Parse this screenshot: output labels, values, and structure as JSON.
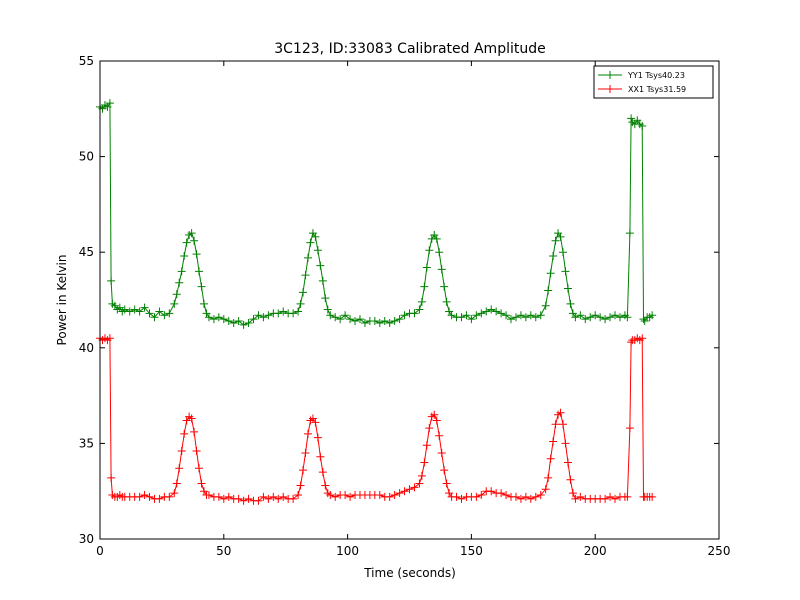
{
  "chart_data": {
    "type": "line",
    "title": "3C123, ID:33083 Calibrated Amplitude",
    "xlabel": "Time (seconds)",
    "ylabel": "Power in Kelvin",
    "xlim": [
      0,
      250
    ],
    "ylim": [
      30,
      55
    ],
    "xticks": [
      "0",
      "50",
      "100",
      "150",
      "200",
      "250"
    ],
    "yticks": [
      "30",
      "35",
      "40",
      "45",
      "50",
      "55"
    ],
    "grid": false,
    "legend_position": "top-right",
    "marker": "plus",
    "series": [
      {
        "name": "YY1 Tsys40.23",
        "color": "#008000",
        "points": [
          [
            0,
            52.6
          ],
          [
            1,
            52.5
          ],
          [
            2,
            52.7
          ],
          [
            3,
            52.6
          ],
          [
            4,
            52.8
          ],
          [
            4.5,
            43.5
          ],
          [
            5,
            42.3
          ],
          [
            6,
            42.2
          ],
          [
            7,
            42.0
          ],
          [
            8,
            42.1
          ],
          [
            9,
            41.9
          ],
          [
            10,
            42.0
          ],
          [
            12,
            41.9
          ],
          [
            14,
            42.0
          ],
          [
            16,
            41.9
          ],
          [
            18,
            42.1
          ],
          [
            20,
            41.8
          ],
          [
            22,
            41.6
          ],
          [
            24,
            41.9
          ],
          [
            26,
            41.7
          ],
          [
            28,
            41.8
          ],
          [
            30,
            42.3
          ],
          [
            31,
            42.8
          ],
          [
            32,
            43.4
          ],
          [
            33,
            44.0
          ],
          [
            34,
            44.8
          ],
          [
            35,
            45.5
          ],
          [
            36,
            45.9
          ],
          [
            37,
            46.0
          ],
          [
            38,
            45.6
          ],
          [
            39,
            44.9
          ],
          [
            40,
            44.0
          ],
          [
            41,
            43.2
          ],
          [
            42,
            42.3
          ],
          [
            43,
            41.8
          ],
          [
            44,
            41.6
          ],
          [
            46,
            41.5
          ],
          [
            48,
            41.6
          ],
          [
            50,
            41.5
          ],
          [
            52,
            41.4
          ],
          [
            54,
            41.3
          ],
          [
            56,
            41.4
          ],
          [
            58,
            41.2
          ],
          [
            60,
            41.3
          ],
          [
            62,
            41.5
          ],
          [
            64,
            41.7
          ],
          [
            66,
            41.6
          ],
          [
            68,
            41.7
          ],
          [
            70,
            41.8
          ],
          [
            72,
            41.8
          ],
          [
            74,
            41.9
          ],
          [
            76,
            41.8
          ],
          [
            78,
            41.8
          ],
          [
            80,
            41.9
          ],
          [
            81,
            42.3
          ],
          [
            82,
            42.9
          ],
          [
            83,
            43.8
          ],
          [
            84,
            44.7
          ],
          [
            85,
            45.5
          ],
          [
            86,
            46.0
          ],
          [
            87,
            45.8
          ],
          [
            88,
            45.1
          ],
          [
            89,
            44.3
          ],
          [
            90,
            43.5
          ],
          [
            91,
            42.6
          ],
          [
            92,
            42.0
          ],
          [
            93,
            41.7
          ],
          [
            95,
            41.6
          ],
          [
            97,
            41.5
          ],
          [
            99,
            41.7
          ],
          [
            101,
            41.5
          ],
          [
            103,
            41.4
          ],
          [
            105,
            41.5
          ],
          [
            107,
            41.3
          ],
          [
            109,
            41.4
          ],
          [
            111,
            41.4
          ],
          [
            113,
            41.3
          ],
          [
            115,
            41.4
          ],
          [
            117,
            41.3
          ],
          [
            119,
            41.4
          ],
          [
            121,
            41.5
          ],
          [
            123,
            41.7
          ],
          [
            125,
            41.8
          ],
          [
            127,
            41.8
          ],
          [
            129,
            42.0
          ],
          [
            130,
            42.4
          ],
          [
            131,
            43.2
          ],
          [
            132,
            44.2
          ],
          [
            133,
            45.1
          ],
          [
            134,
            45.7
          ],
          [
            135,
            45.9
          ],
          [
            136,
            45.7
          ],
          [
            137,
            45.0
          ],
          [
            138,
            44.1
          ],
          [
            139,
            43.2
          ],
          [
            140,
            42.4
          ],
          [
            141,
            41.9
          ],
          [
            142,
            41.7
          ],
          [
            144,
            41.6
          ],
          [
            146,
            41.6
          ],
          [
            148,
            41.7
          ],
          [
            150,
            41.5
          ],
          [
            152,
            41.7
          ],
          [
            154,
            41.8
          ],
          [
            156,
            41.9
          ],
          [
            158,
            42.0
          ],
          [
            160,
            41.9
          ],
          [
            162,
            41.8
          ],
          [
            164,
            41.7
          ],
          [
            166,
            41.5
          ],
          [
            168,
            41.6
          ],
          [
            170,
            41.7
          ],
          [
            172,
            41.6
          ],
          [
            174,
            41.7
          ],
          [
            176,
            41.6
          ],
          [
            178,
            41.7
          ],
          [
            180,
            42.2
          ],
          [
            181,
            43.0
          ],
          [
            182,
            43.9
          ],
          [
            183,
            44.8
          ],
          [
            184,
            45.6
          ],
          [
            185,
            46.0
          ],
          [
            186,
            45.8
          ],
          [
            187,
            45.0
          ],
          [
            188,
            44.0
          ],
          [
            189,
            43.1
          ],
          [
            190,
            42.3
          ],
          [
            191,
            41.8
          ],
          [
            192,
            41.6
          ],
          [
            194,
            41.7
          ],
          [
            196,
            41.5
          ],
          [
            198,
            41.6
          ],
          [
            200,
            41.7
          ],
          [
            202,
            41.6
          ],
          [
            204,
            41.5
          ],
          [
            206,
            41.6
          ],
          [
            208,
            41.7
          ],
          [
            210,
            41.6
          ],
          [
            212,
            41.7
          ],
          [
            213,
            41.6
          ],
          [
            214,
            46.0
          ],
          [
            214.5,
            52.0
          ],
          [
            215,
            51.8
          ],
          [
            216,
            51.7
          ],
          [
            217,
            51.9
          ],
          [
            218,
            51.7
          ],
          [
            219,
            51.6
          ],
          [
            219.5,
            41.5
          ],
          [
            220,
            41.4
          ],
          [
            221,
            41.6
          ],
          [
            222,
            41.6
          ],
          [
            223,
            41.7
          ]
        ]
      },
      {
        "name": "XX1 Tsys31.59",
        "color": "#ff0000",
        "points": [
          [
            0,
            40.5
          ],
          [
            1,
            40.4
          ],
          [
            2,
            40.5
          ],
          [
            3,
            40.4
          ],
          [
            4,
            40.5
          ],
          [
            4.5,
            33.2
          ],
          [
            5,
            32.3
          ],
          [
            6,
            32.2
          ],
          [
            7,
            32.2
          ],
          [
            8,
            32.3
          ],
          [
            9,
            32.2
          ],
          [
            10,
            32.2
          ],
          [
            12,
            32.2
          ],
          [
            14,
            32.2
          ],
          [
            16,
            32.2
          ],
          [
            18,
            32.3
          ],
          [
            20,
            32.2
          ],
          [
            22,
            32.1
          ],
          [
            24,
            32.1
          ],
          [
            26,
            32.2
          ],
          [
            28,
            32.2
          ],
          [
            30,
            32.4
          ],
          [
            31,
            32.9
          ],
          [
            32,
            33.7
          ],
          [
            33,
            34.6
          ],
          [
            34,
            35.5
          ],
          [
            35,
            36.2
          ],
          [
            36,
            36.4
          ],
          [
            37,
            36.3
          ],
          [
            38,
            35.6
          ],
          [
            39,
            34.6
          ],
          [
            40,
            33.7
          ],
          [
            41,
            32.9
          ],
          [
            42,
            32.5
          ],
          [
            43,
            32.3
          ],
          [
            44,
            32.3
          ],
          [
            46,
            32.2
          ],
          [
            48,
            32.2
          ],
          [
            50,
            32.1
          ],
          [
            52,
            32.2
          ],
          [
            54,
            32.1
          ],
          [
            56,
            32.1
          ],
          [
            58,
            32.0
          ],
          [
            60,
            32.1
          ],
          [
            62,
            32.0
          ],
          [
            64,
            32.0
          ],
          [
            66,
            32.2
          ],
          [
            68,
            32.1
          ],
          [
            70,
            32.2
          ],
          [
            72,
            32.1
          ],
          [
            74,
            32.2
          ],
          [
            76,
            32.1
          ],
          [
            78,
            32.1
          ],
          [
            80,
            32.3
          ],
          [
            81,
            32.8
          ],
          [
            82,
            33.6
          ],
          [
            83,
            34.5
          ],
          [
            84,
            35.5
          ],
          [
            85,
            36.2
          ],
          [
            86,
            36.3
          ],
          [
            87,
            36.1
          ],
          [
            88,
            35.3
          ],
          [
            89,
            34.3
          ],
          [
            90,
            33.5
          ],
          [
            91,
            32.8
          ],
          [
            92,
            32.4
          ],
          [
            93,
            32.3
          ],
          [
            95,
            32.2
          ],
          [
            97,
            32.3
          ],
          [
            99,
            32.3
          ],
          [
            101,
            32.2
          ],
          [
            103,
            32.3
          ],
          [
            105,
            32.3
          ],
          [
            107,
            32.3
          ],
          [
            109,
            32.3
          ],
          [
            111,
            32.3
          ],
          [
            113,
            32.3
          ],
          [
            115,
            32.2
          ],
          [
            117,
            32.2
          ],
          [
            119,
            32.3
          ],
          [
            121,
            32.4
          ],
          [
            123,
            32.5
          ],
          [
            125,
            32.6
          ],
          [
            127,
            32.7
          ],
          [
            129,
            32.9
          ],
          [
            130,
            33.3
          ],
          [
            131,
            34.0
          ],
          [
            132,
            34.9
          ],
          [
            133,
            35.8
          ],
          [
            134,
            36.4
          ],
          [
            135,
            36.5
          ],
          [
            136,
            36.2
          ],
          [
            137,
            35.4
          ],
          [
            138,
            34.5
          ],
          [
            139,
            33.6
          ],
          [
            140,
            32.9
          ],
          [
            141,
            32.4
          ],
          [
            142,
            32.2
          ],
          [
            144,
            32.2
          ],
          [
            146,
            32.1
          ],
          [
            148,
            32.2
          ],
          [
            150,
            32.2
          ],
          [
            152,
            32.2
          ],
          [
            154,
            32.3
          ],
          [
            156,
            32.5
          ],
          [
            158,
            32.5
          ],
          [
            160,
            32.4
          ],
          [
            162,
            32.4
          ],
          [
            164,
            32.3
          ],
          [
            166,
            32.2
          ],
          [
            168,
            32.2
          ],
          [
            170,
            32.1
          ],
          [
            172,
            32.2
          ],
          [
            174,
            32.1
          ],
          [
            176,
            32.2
          ],
          [
            178,
            32.3
          ],
          [
            180,
            32.6
          ],
          [
            181,
            33.2
          ],
          [
            182,
            34.2
          ],
          [
            183,
            35.1
          ],
          [
            184,
            36.0
          ],
          [
            185,
            36.5
          ],
          [
            186,
            36.6
          ],
          [
            187,
            36.0
          ],
          [
            188,
            35.0
          ],
          [
            189,
            34.0
          ],
          [
            190,
            33.1
          ],
          [
            191,
            32.4
          ],
          [
            192,
            32.1
          ],
          [
            194,
            32.2
          ],
          [
            196,
            32.1
          ],
          [
            198,
            32.1
          ],
          [
            200,
            32.1
          ],
          [
            202,
            32.1
          ],
          [
            204,
            32.1
          ],
          [
            206,
            32.2
          ],
          [
            208,
            32.1
          ],
          [
            210,
            32.2
          ],
          [
            212,
            32.2
          ],
          [
            213,
            32.2
          ],
          [
            214,
            35.8
          ],
          [
            214.5,
            40.3
          ],
          [
            215,
            40.4
          ],
          [
            216,
            40.4
          ],
          [
            217,
            40.5
          ],
          [
            218,
            40.4
          ],
          [
            219,
            40.5
          ],
          [
            219.5,
            32.2
          ],
          [
            220,
            32.2
          ],
          [
            221,
            32.2
          ],
          [
            222,
            32.2
          ],
          [
            223,
            32.2
          ]
        ]
      }
    ]
  }
}
